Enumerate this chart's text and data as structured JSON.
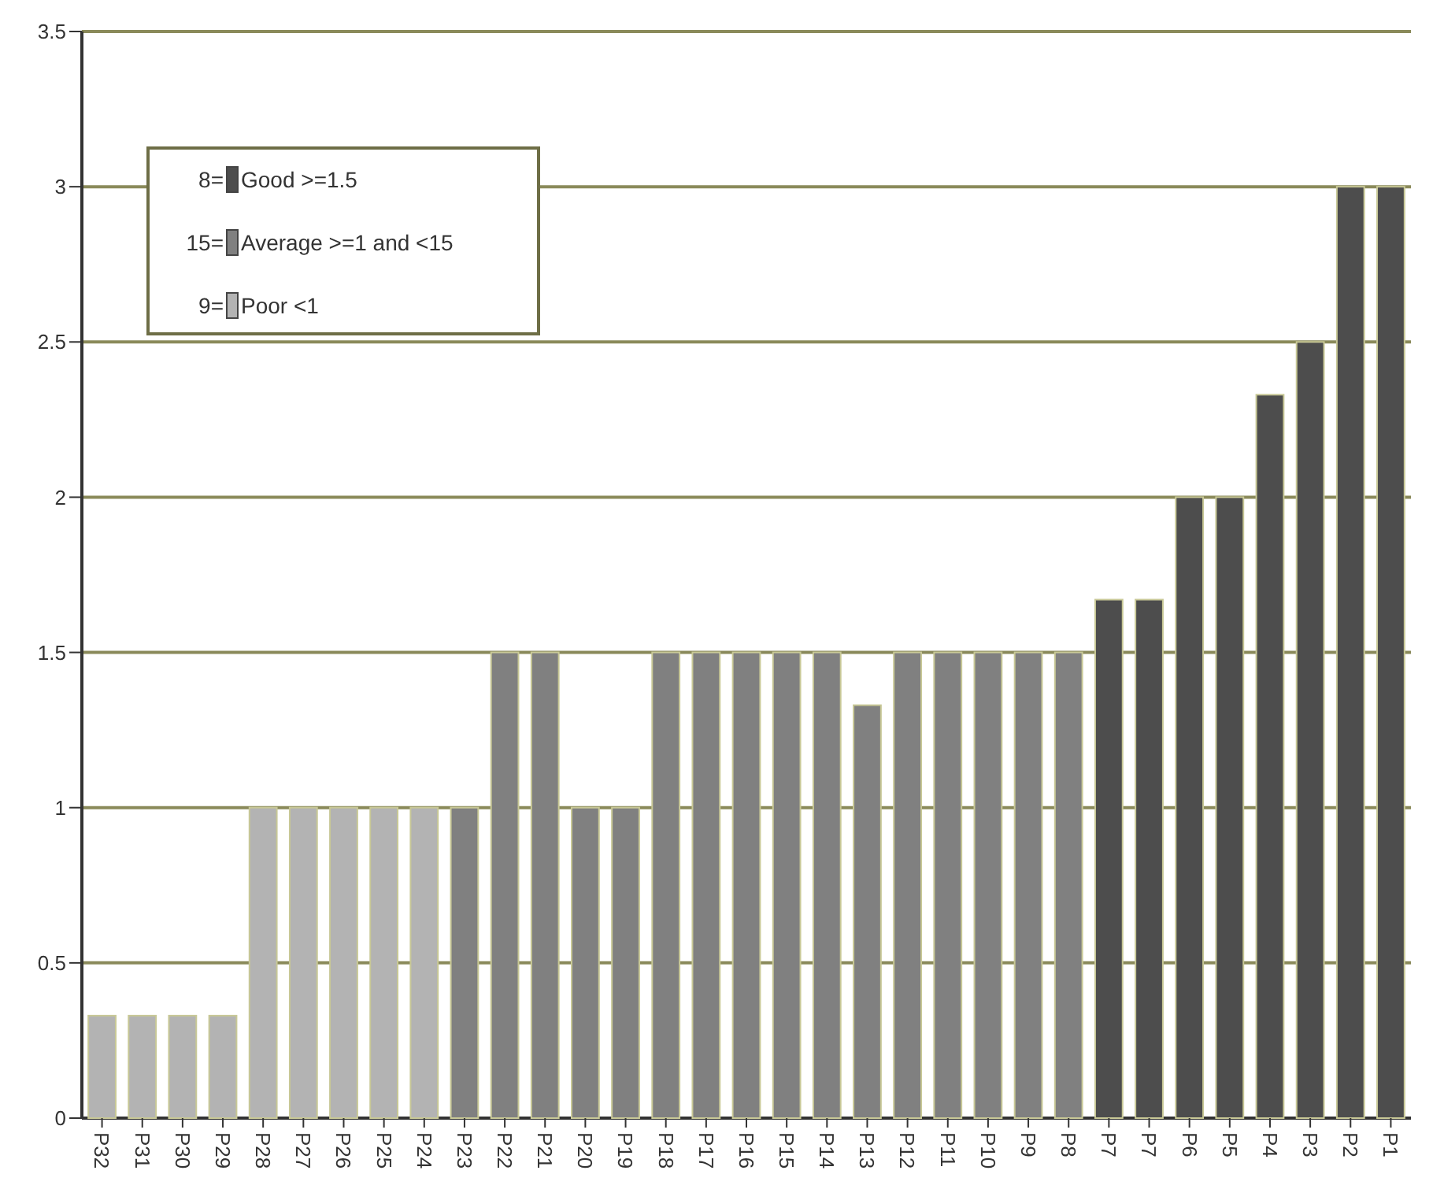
{
  "chart_data": {
    "type": "bar",
    "stacked": true,
    "categories": [
      "P32",
      "P31",
      "P30",
      "P29",
      "P28",
      "P27",
      "P26",
      "P25",
      "P24",
      "P23",
      "P22",
      "P21",
      "P20",
      "P19",
      "P18",
      "P17",
      "P16",
      "P15",
      "P14",
      "P13",
      "P12",
      "P11",
      "P10",
      "P9",
      "P8",
      "P7",
      "P7",
      "P6",
      "P5",
      "P4",
      "P3",
      "P2",
      "P1"
    ],
    "series": [
      {
        "name": "Good >=1.5",
        "color": "#4d4d4d",
        "values": [
          null,
          null,
          null,
          null,
          null,
          null,
          null,
          null,
          null,
          null,
          null,
          null,
          null,
          null,
          null,
          null,
          null,
          null,
          null,
          null,
          null,
          null,
          null,
          null,
          null,
          1.67,
          1.67,
          2,
          2,
          2.33,
          2.5,
          3,
          3
        ]
      },
      {
        "name": "Average >=1 and <15",
        "color": "#808080",
        "values": [
          null,
          null,
          null,
          null,
          null,
          null,
          null,
          null,
          null,
          1,
          1.5,
          1.5,
          1,
          1,
          1.5,
          1.5,
          1.5,
          1.5,
          1.5,
          1.33,
          1.5,
          1.5,
          1.5,
          1.5,
          1.5,
          null,
          null,
          null,
          null,
          null,
          null,
          null,
          null
        ]
      },
      {
        "name": "Poor <1",
        "color": "#b3b3b3",
        "values": [
          0.33,
          0.33,
          0.33,
          0.33,
          1,
          1,
          1,
          1,
          1,
          null,
          null,
          null,
          null,
          null,
          null,
          null,
          null,
          null,
          null,
          null,
          null,
          null,
          null,
          null,
          null,
          null,
          null,
          null,
          null,
          null,
          null,
          null,
          null
        ]
      }
    ],
    "annotations": [
      "8=",
      "15=",
      "9="
    ],
    "ylim": [
      0,
      3.5
    ],
    "yticks": [
      0,
      0.5,
      1,
      1.5,
      2,
      2.5,
      3,
      3.5
    ],
    "grid": "y",
    "legend": "top left"
  }
}
